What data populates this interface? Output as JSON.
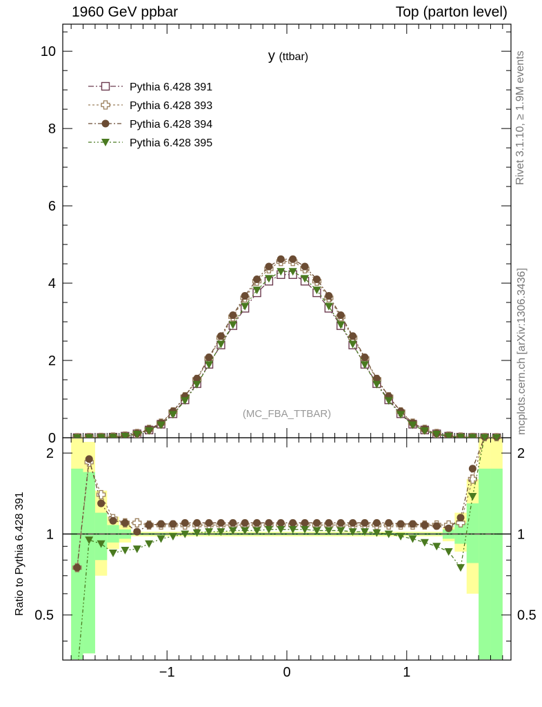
{
  "header": {
    "left": "1960 GeV ppbar",
    "right": "Top (parton level)"
  },
  "side_text": {
    "rivet": "Rivet 3.1.10, ≥ 1.9M events",
    "mcplots": "mcplots.cern.ch [arXiv:1306.3436]"
  },
  "chart_data": {
    "type": "line",
    "title": "y",
    "title_sub": "(ttbar)",
    "watermark": "(MC_FBA_TTBAR)",
    "xlim": [
      -1.87,
      1.87
    ],
    "main": {
      "ylim": [
        0,
        10.7
      ],
      "yticks": [
        0,
        2,
        4,
        6,
        8,
        10
      ],
      "yticklabels": [
        "0",
        "2",
        "4",
        "6",
        "8",
        "10"
      ]
    },
    "ratio": {
      "ylabel": "Ratio to Pythia 6.428 391",
      "ylim": [
        0.34,
        2.28
      ],
      "yticks": [
        0.5,
        1,
        2
      ],
      "yticklabels": [
        "0.5",
        "1",
        "2"
      ]
    },
    "xticks": [
      -1,
      0,
      1
    ],
    "xticklabels": [
      "−1",
      "0",
      "1"
    ],
    "x": [
      -1.75,
      -1.65,
      -1.55,
      -1.45,
      -1.35,
      -1.25,
      -1.15,
      -1.05,
      -0.95,
      -0.85,
      -0.75,
      -0.65,
      -0.55,
      -0.45,
      -0.35,
      -0.25,
      -0.15,
      -0.05,
      0.05,
      0.15,
      0.25,
      0.35,
      0.45,
      0.55,
      0.65,
      0.75,
      0.85,
      0.95,
      1.05,
      1.15,
      1.25,
      1.35,
      1.45,
      1.55,
      1.65,
      1.75
    ],
    "series": [
      {
        "name": "Pythia 6.428 391",
        "color": "#6b3a4e",
        "marker": "open-square",
        "values": [
          0.001,
          0.003,
          0.007,
          0.015,
          0.04,
          0.1,
          0.2,
          0.35,
          0.62,
          0.98,
          1.4,
          1.9,
          2.4,
          2.9,
          3.35,
          3.75,
          4.05,
          4.22,
          4.22,
          4.05,
          3.75,
          3.35,
          2.9,
          2.4,
          1.9,
          1.4,
          0.98,
          0.62,
          0.35,
          0.2,
          0.1,
          0.04,
          0.015,
          0.007,
          0.003,
          0.001
        ],
        "ratio": [
          1.0,
          1.0,
          1.0,
          1.0,
          1.0,
          1.0,
          1.0,
          1.0,
          1.0,
          1.0,
          1.0,
          1.0,
          1.0,
          1.0,
          1.0,
          1.0,
          1.0,
          1.0,
          1.0,
          1.0,
          1.0,
          1.0,
          1.0,
          1.0,
          1.0,
          1.0,
          1.0,
          1.0,
          1.0,
          1.0,
          1.0,
          1.0,
          1.0,
          1.0,
          1.0,
          1.0
        ]
      },
      {
        "name": "Pythia 6.428 393",
        "color": "#9a7f5c",
        "marker": "open-cross",
        "values": [
          0.001,
          0.003,
          0.008,
          0.017,
          0.044,
          0.108,
          0.216,
          0.378,
          0.67,
          1.06,
          1.51,
          2.05,
          2.59,
          3.13,
          3.62,
          4.05,
          4.37,
          4.56,
          4.56,
          4.37,
          4.05,
          3.62,
          3.13,
          2.59,
          2.05,
          1.51,
          1.06,
          0.67,
          0.378,
          0.216,
          0.108,
          0.044,
          0.017,
          0.008,
          0.003,
          0.001
        ],
        "ratio": [
          0.75,
          1.85,
          1.4,
          1.14,
          1.1,
          1.1,
          1.08,
          1.08,
          1.08,
          1.08,
          1.08,
          1.08,
          1.08,
          1.08,
          1.08,
          1.08,
          1.08,
          1.08,
          1.08,
          1.08,
          1.08,
          1.08,
          1.08,
          1.08,
          1.08,
          1.08,
          1.08,
          1.08,
          1.08,
          1.08,
          1.08,
          1.08,
          1.1,
          1.6,
          2.3,
          2.3
        ]
      },
      {
        "name": "Pythia 6.428 394",
        "color": "#6b4c33",
        "marker": "filled-circle",
        "values": [
          0.001,
          0.003,
          0.008,
          0.017,
          0.044,
          0.11,
          0.22,
          0.38,
          0.68,
          1.07,
          1.53,
          2.08,
          2.63,
          3.17,
          3.67,
          4.1,
          4.43,
          4.62,
          4.62,
          4.43,
          4.1,
          3.67,
          3.17,
          2.63,
          2.08,
          1.53,
          1.07,
          0.68,
          0.38,
          0.22,
          0.11,
          0.044,
          0.017,
          0.008,
          0.003,
          0.001
        ],
        "ratio": [
          0.75,
          1.9,
          1.3,
          1.12,
          1.1,
          1.02,
          1.08,
          1.09,
          1.09,
          1.1,
          1.1,
          1.1,
          1.1,
          1.1,
          1.1,
          1.1,
          1.1,
          1.1,
          1.1,
          1.1,
          1.1,
          1.1,
          1.1,
          1.1,
          1.1,
          1.1,
          1.1,
          1.09,
          1.09,
          1.08,
          1.07,
          1.05,
          1.15,
          1.75,
          2.3,
          2.3
        ]
      },
      {
        "name": "Pythia 6.428 395",
        "color": "#4a7a20",
        "marker": "filled-triangle-down",
        "values": [
          0.001,
          0.003,
          0.006,
          0.013,
          0.036,
          0.09,
          0.18,
          0.33,
          0.6,
          0.96,
          1.38,
          1.89,
          2.42,
          2.92,
          3.4,
          3.82,
          4.12,
          4.3,
          4.3,
          4.12,
          3.82,
          3.4,
          2.92,
          2.42,
          1.89,
          1.38,
          0.96,
          0.6,
          0.33,
          0.18,
          0.09,
          0.036,
          0.013,
          0.006,
          0.003,
          0.001
        ],
        "ratio": [
          0.3,
          0.95,
          0.92,
          0.85,
          0.87,
          0.88,
          0.92,
          0.96,
          0.98,
          1.0,
          1.01,
          1.02,
          1.02,
          1.03,
          1.03,
          1.03,
          1.04,
          1.04,
          1.04,
          1.04,
          1.03,
          1.03,
          1.03,
          1.02,
          1.02,
          1.01,
          1.0,
          0.98,
          0.96,
          0.93,
          0.9,
          0.86,
          0.75,
          1.38,
          2.3,
          2.3
        ]
      }
    ],
    "bands": {
      "bin_edges": [
        -1.8,
        -1.7,
        -1.6,
        -1.5,
        -1.4,
        -1.3,
        1.3,
        1.4,
        1.5,
        1.6,
        1.7,
        1.8
      ],
      "yellow": [
        [
          0.32,
          2.3
        ],
        [
          0.36,
          2.2
        ],
        [
          0.7,
          1.45
        ],
        [
          0.88,
          1.16
        ],
        [
          0.93,
          1.08
        ],
        [
          0.98,
          1.02
        ],
        [
          0.94,
          1.06
        ],
        [
          0.86,
          1.2
        ],
        [
          0.6,
          1.6
        ],
        [
          0.32,
          2.3
        ],
        [
          0.32,
          2.3
        ]
      ],
      "green": [
        [
          0.32,
          1.75
        ],
        [
          0.36,
          1.7
        ],
        [
          0.8,
          1.2
        ],
        [
          0.93,
          1.08
        ],
        [
          0.96,
          1.04
        ],
        [
          0.99,
          1.01
        ],
        [
          0.96,
          1.04
        ],
        [
          0.92,
          1.1
        ],
        [
          0.78,
          1.3
        ],
        [
          0.32,
          1.75
        ],
        [
          0.32,
          1.75
        ]
      ]
    },
    "legend_position": "top-left",
    "grid": false
  }
}
